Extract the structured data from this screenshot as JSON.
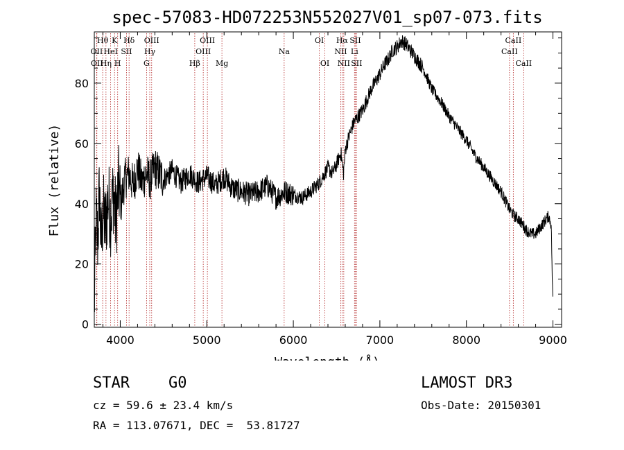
{
  "chart_data": {
    "type": "line",
    "title": "spec-57083-HD072253N552027V01_sp07-073.fits",
    "xlabel": "Wavelength (Å)",
    "ylabel": "Flux (relative)",
    "xlim": [
      3700,
      9100
    ],
    "ylim": [
      -1,
      97
    ],
    "xticks": [
      4000,
      5000,
      6000,
      7000,
      8000,
      9000
    ],
    "yticks": [
      0,
      20,
      40,
      60,
      80
    ],
    "series": [
      {
        "name": "flux",
        "x": [
          3700,
          3720,
          3740,
          3760,
          3780,
          3800,
          3830,
          3860,
          3890,
          3920,
          3950,
          3980,
          4010,
          4050,
          4100,
          4150,
          4200,
          4250,
          4300,
          4350,
          4400,
          4500,
          4600,
          4700,
          4800,
          4900,
          5000,
          5100,
          5200,
          5300,
          5400,
          5500,
          5600,
          5700,
          5800,
          5900,
          6000,
          6100,
          6200,
          6300,
          6400,
          6450,
          6500,
          6550,
          6580,
          6600,
          6650,
          6700,
          6750,
          6800,
          6900,
          7000,
          7050,
          7100,
          7150,
          7200,
          7250,
          7300,
          7350,
          7400,
          7500,
          7600,
          7700,
          7800,
          7900,
          8000,
          8100,
          8200,
          8300,
          8400,
          8450,
          8500,
          8550,
          8600,
          8650,
          8700,
          8750,
          8800,
          8850,
          8900,
          8950,
          8980,
          9000
        ],
        "values": [
          5,
          35,
          28,
          45,
          25,
          38,
          32,
          42,
          36,
          44,
          34,
          46,
          40,
          48,
          50,
          46,
          52,
          47,
          50,
          48,
          52,
          48,
          51,
          47,
          50,
          47,
          49,
          46,
          49,
          45,
          44,
          43,
          44,
          46,
          42,
          44,
          43,
          42,
          44,
          47,
          52,
          50,
          53,
          57,
          50,
          58,
          63,
          67,
          69,
          71,
          78,
          83,
          86,
          88,
          91,
          92,
          94,
          93,
          91,
          89,
          85,
          78,
          74,
          69,
          65,
          61,
          56,
          52,
          48,
          44,
          41,
          38,
          36,
          35,
          33,
          31,
          30,
          30,
          32,
          34,
          36,
          33,
          5
        ]
      }
    ],
    "lines": [
      {
        "x": 3727,
        "label": "OII",
        "row": 2
      },
      {
        "x": 3730,
        "label": "OII",
        "row": 3
      },
      {
        "x": 3797,
        "label": "Hθ",
        "row": 1
      },
      {
        "x": 3835,
        "label": "Hη",
        "row": 3
      },
      {
        "x": 3889,
        "label": "HeI",
        "row": 2
      },
      {
        "x": 3934,
        "label": "K",
        "row": 1
      },
      {
        "x": 3970,
        "label": "H",
        "row": 3
      },
      {
        "x": 4072,
        "label": "SII",
        "row": 2
      },
      {
        "x": 4102,
        "label": "Hδ",
        "row": 1
      },
      {
        "x": 4304,
        "label": "G",
        "row": 3
      },
      {
        "x": 4341,
        "label": "Hγ",
        "row": 2
      },
      {
        "x": 4363,
        "label": "OIII",
        "row": 1
      },
      {
        "x": 4861,
        "label": "Hβ",
        "row": 3
      },
      {
        "x": 4959,
        "label": "OIII",
        "row": 2
      },
      {
        "x": 5007,
        "label": "OIII",
        "row": 1
      },
      {
        "x": 5175,
        "label": "Mg",
        "row": 3
      },
      {
        "x": 5894,
        "label": "Na",
        "row": 2
      },
      {
        "x": 6300,
        "label": "OI",
        "row": 1
      },
      {
        "x": 6364,
        "label": "OI",
        "row": 3
      },
      {
        "x": 6548,
        "label": "NII",
        "row": 2
      },
      {
        "x": 6563,
        "label": "Hα",
        "row": 1
      },
      {
        "x": 6583,
        "label": "NII",
        "row": 3
      },
      {
        "x": 6707,
        "label": "Li",
        "row": 2
      },
      {
        "x": 6716,
        "label": "SII",
        "row": 1
      },
      {
        "x": 6731,
        "label": "SII",
        "row": 3
      },
      {
        "x": 8498,
        "label": "CaII",
        "row": 2
      },
      {
        "x": 8542,
        "label": "CaII",
        "row": 1
      },
      {
        "x": 8662,
        "label": "CaII",
        "row": 3
      }
    ]
  },
  "info": {
    "class_label": "STAR",
    "subclass_label": "G0",
    "survey_label": "LAMOST DR3",
    "cz_text": "cz = 59.6 ± 23.4 km/s",
    "obs_date_text": "Obs-Date: 20150301",
    "coords_text": "RA = 113.07671, DEC =  53.81727"
  }
}
